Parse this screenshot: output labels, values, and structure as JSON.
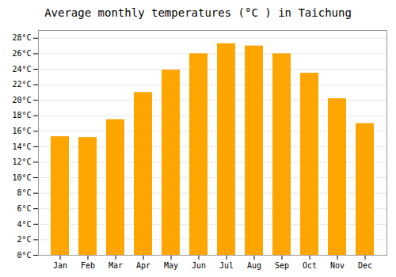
{
  "chart_data": {
    "type": "bar",
    "title": "Average monthly temperatures (°C ) in Taichung",
    "categories": [
      "Jan",
      "Feb",
      "Mar",
      "Apr",
      "May",
      "Jun",
      "Jul",
      "Aug",
      "Sep",
      "Oct",
      "Nov",
      "Dec"
    ],
    "values": [
      15.3,
      15.2,
      17.5,
      21.0,
      23.9,
      26.0,
      27.3,
      27.0,
      26.0,
      23.5,
      20.2,
      17.0
    ],
    "color": "#FFA500",
    "ylim": [
      0,
      29
    ],
    "yticks": [
      {
        "value": 0,
        "label": "0°C"
      },
      {
        "value": 2,
        "label": "2°C"
      },
      {
        "value": 4,
        "label": "4°C"
      },
      {
        "value": 6,
        "label": "6°C"
      },
      {
        "value": 8,
        "label": "8°C"
      },
      {
        "value": 10,
        "label": "10°C"
      },
      {
        "value": 12,
        "label": "12°C"
      },
      {
        "value": 14,
        "label": "14°C"
      },
      {
        "value": 16,
        "label": "16°C"
      },
      {
        "value": 18,
        "label": "18°C"
      },
      {
        "value": 20,
        "label": "20°C"
      },
      {
        "value": 22,
        "label": "22°C"
      },
      {
        "value": 24,
        "label": "24°C"
      },
      {
        "value": 26,
        "label": "26°C"
      },
      {
        "value": 28,
        "label": "28°C"
      }
    ],
    "grid": true
  }
}
